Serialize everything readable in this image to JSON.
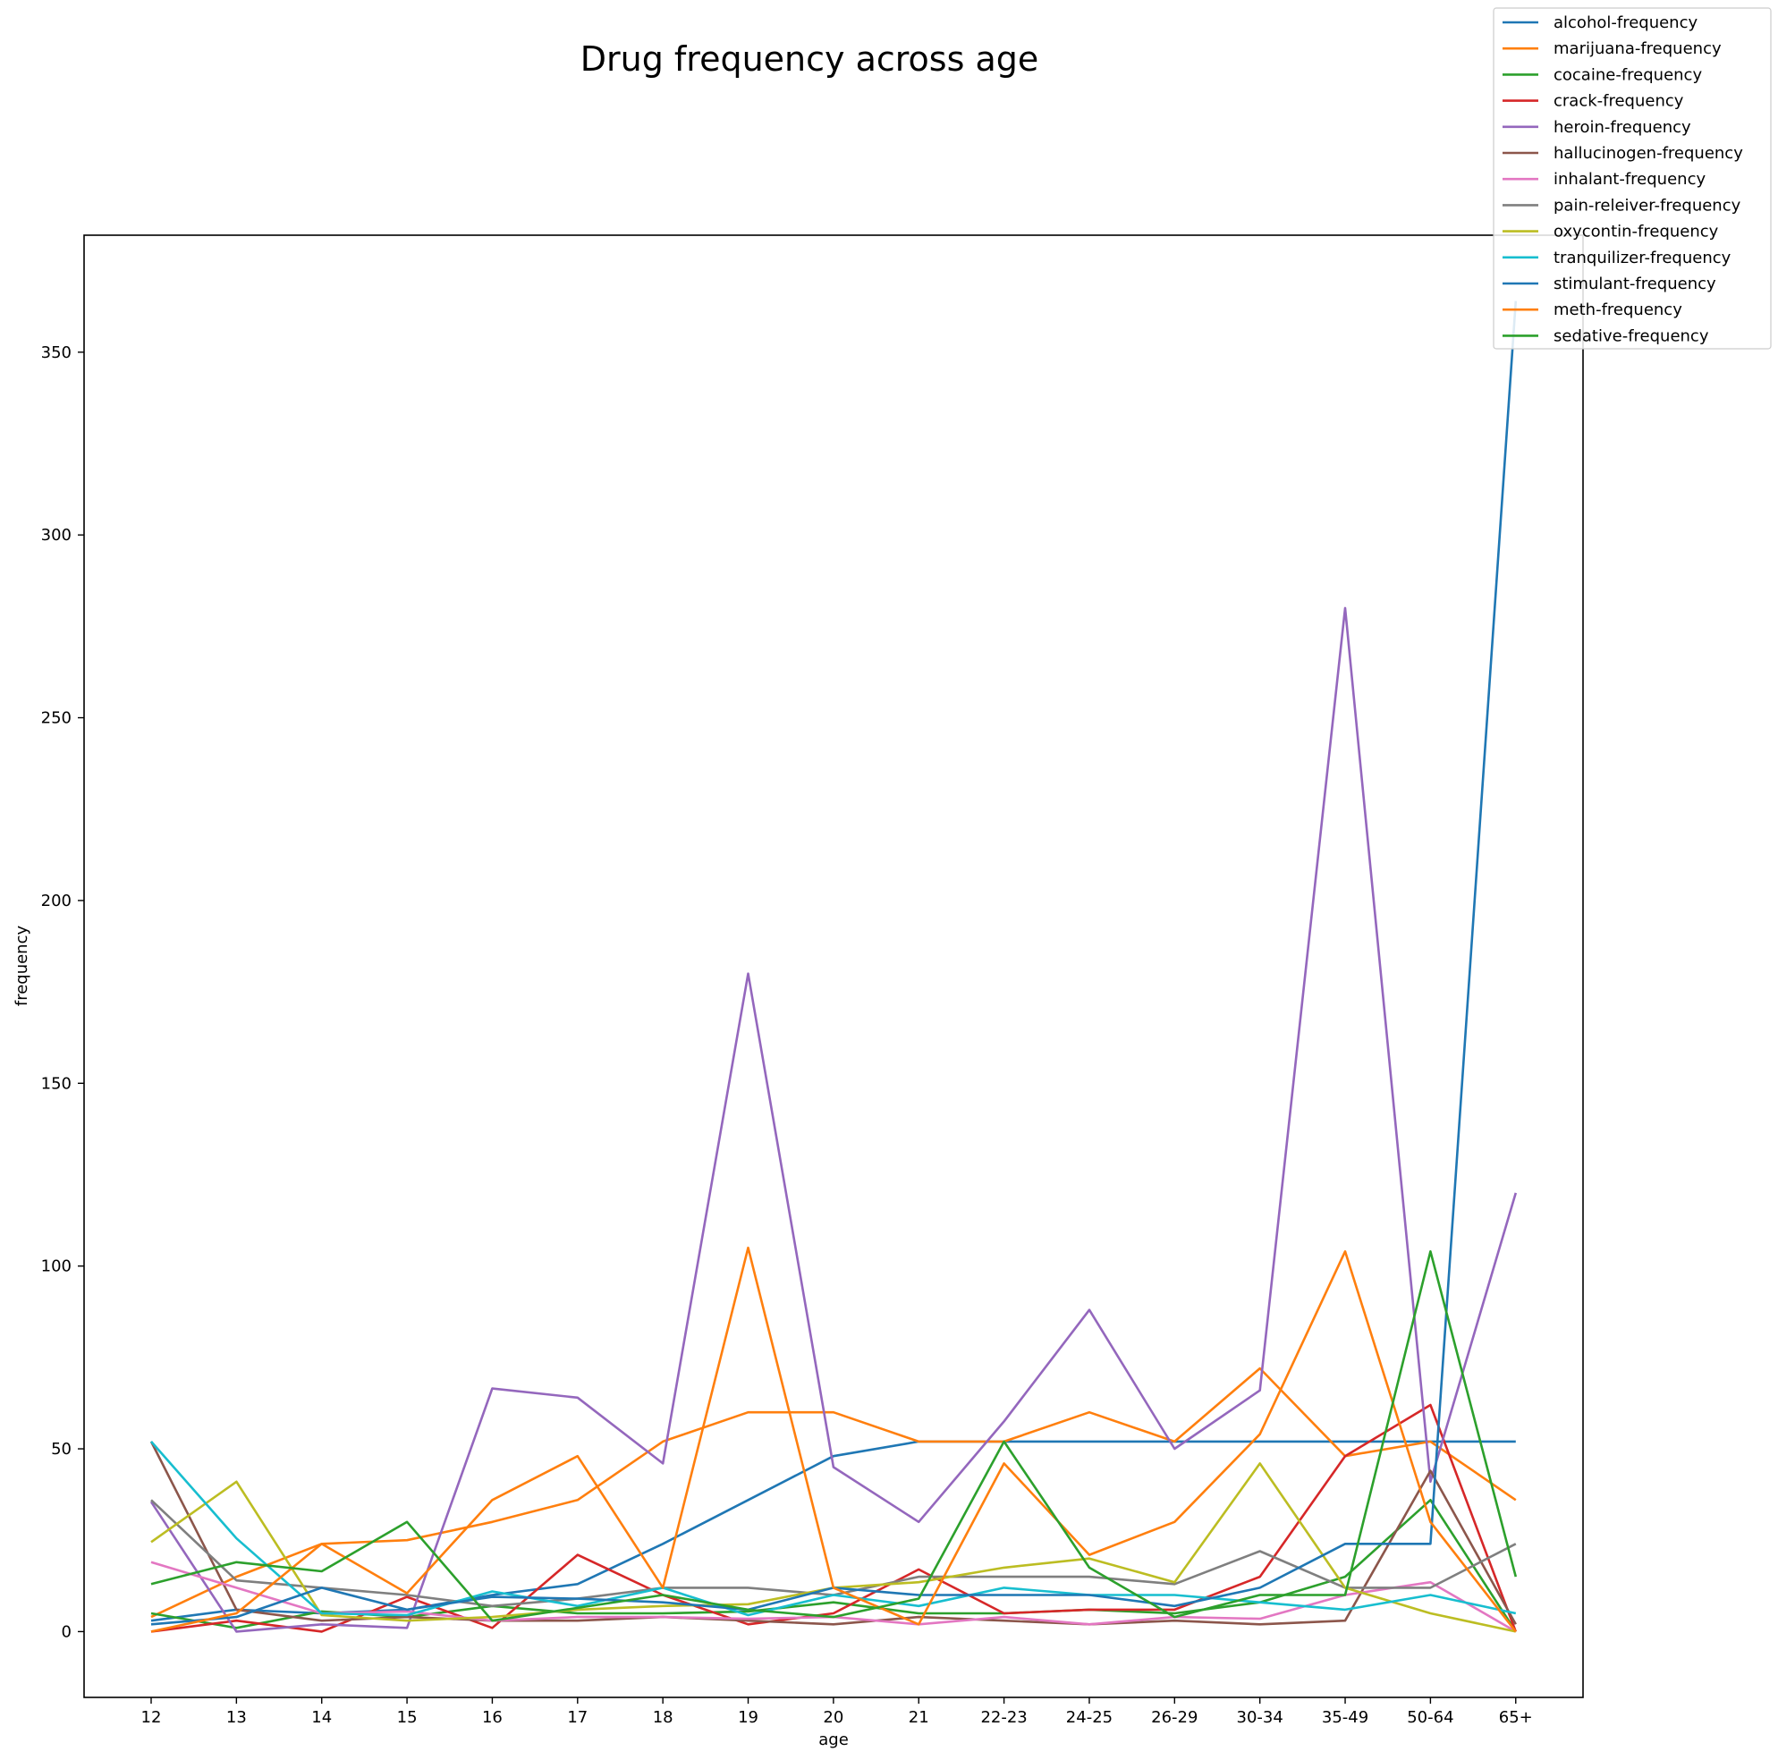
{
  "chart_data": {
    "type": "line",
    "title": "Drug frequency across age",
    "xlabel": "age",
    "ylabel": "frequency",
    "ylim": [
      -18,
      382
    ],
    "yticks": [
      0,
      50,
      100,
      150,
      200,
      250,
      300,
      350
    ],
    "grid": false,
    "legend_position": "top-right",
    "categories": [
      "12",
      "13",
      "14",
      "15",
      "16",
      "17",
      "18",
      "19",
      "20",
      "21",
      "22-23",
      "24-25",
      "26-29",
      "30-34",
      "35-49",
      "50-64",
      "65+"
    ],
    "series": [
      {
        "name": "alcohol-frequency",
        "color": "#1f77b4",
        "values": [
          3,
          6,
          5,
          6,
          10,
          13,
          24,
          36,
          48,
          52,
          52,
          52,
          52,
          52,
          52,
          52,
          52
        ]
      },
      {
        "name": "marijuana-frequency",
        "color": "#ff7f0e",
        "values": [
          4,
          15,
          24,
          25,
          30,
          36,
          52,
          60,
          60,
          52,
          52,
          60,
          52,
          72,
          48,
          52,
          36
        ]
      },
      {
        "name": "cocaine-frequency",
        "color": "#2ca02c",
        "values": [
          5,
          1,
          5.5,
          4,
          7,
          5,
          5,
          5.5,
          8,
          5,
          5,
          6,
          5,
          8,
          15,
          36,
          0
        ]
      },
      {
        "name": "crack-frequency",
        "color": "#d62728",
        "values": [
          0,
          3,
          0,
          9.5,
          1,
          21,
          10,
          2,
          5,
          17,
          5,
          6,
          6,
          15,
          48,
          62,
          0
        ]
      },
      {
        "name": "heroin-frequency",
        "color": "#9467bd",
        "values": [
          35.5,
          0,
          2,
          1,
          66.5,
          64,
          46,
          180,
          45,
          30,
          57.5,
          88,
          50,
          66,
          280,
          41,
          120
        ]
      },
      {
        "name": "hallucinogen-frequency",
        "color": "#8c564b",
        "values": [
          52,
          6,
          3,
          4,
          3,
          3,
          4,
          3,
          2,
          4,
          3,
          2,
          3,
          2,
          3,
          44,
          2
        ]
      },
      {
        "name": "inhalant-frequency",
        "color": "#e377c2",
        "values": [
          19,
          12,
          5,
          5.5,
          3,
          4,
          4,
          3.5,
          4,
          2,
          4,
          2,
          4,
          3.5,
          10,
          13.5,
          0
        ]
      },
      {
        "name": "pain-releiver-frequency",
        "color": "#7f7f7f",
        "values": [
          36,
          14,
          12,
          10,
          7,
          9,
          12,
          12,
          10,
          15,
          15,
          15,
          13,
          22,
          12,
          12,
          24
        ]
      },
      {
        "name": "oxycontin-frequency",
        "color": "#bcbd22",
        "values": [
          24.5,
          41,
          4.5,
          3,
          4,
          6,
          7,
          7.5,
          12,
          13.5,
          17.5,
          20,
          13.5,
          46,
          12,
          5,
          0
        ]
      },
      {
        "name": "tranquilizer-frequency",
        "color": "#17becf",
        "values": [
          52,
          25.5,
          5,
          4.5,
          11,
          7,
          12,
          4.5,
          10,
          7,
          12,
          10,
          10,
          8,
          6,
          10,
          5
        ]
      },
      {
        "name": "stimulant-frequency",
        "color": "#1f77b4",
        "values": [
          2,
          4,
          12,
          6,
          9.5,
          9,
          8,
          6,
          12,
          10,
          10,
          10,
          7,
          12,
          24,
          24,
          364
        ]
      },
      {
        "name": "meth-frequency",
        "color": "#ff7f0e",
        "values": [
          0,
          5,
          24,
          10.5,
          36,
          48,
          12,
          105,
          12,
          2,
          46,
          21,
          30,
          54,
          104,
          30,
          0
        ]
      },
      {
        "name": "sedative-frequency",
        "color": "#2ca02c",
        "values": [
          13,
          19,
          16.5,
          30,
          3,
          6.5,
          10,
          6,
          4,
          9,
          52,
          17.5,
          4,
          10,
          10,
          104,
          15
        ]
      }
    ]
  }
}
